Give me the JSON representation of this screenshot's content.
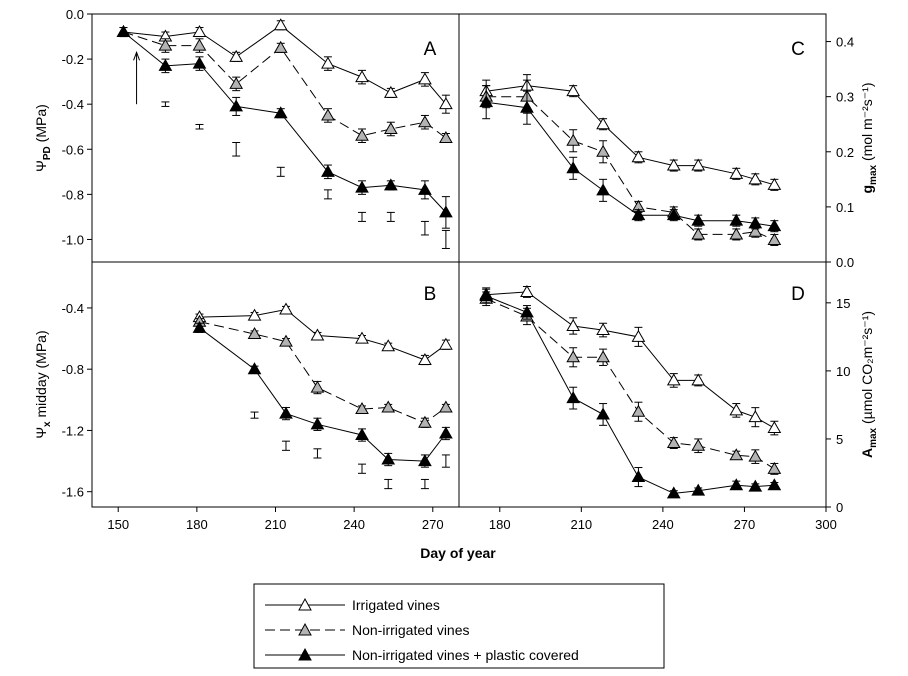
{
  "xlabel": "Day of year",
  "legend": {
    "placement": "bottom-center",
    "entries": [
      {
        "label": "Irrigated vines",
        "style": "solid",
        "marker": "open-triangle"
      },
      {
        "label": "Non-irrigated vines",
        "style": "dashed",
        "marker": "gray-triangle"
      },
      {
        "label": "Non-irrigated vines + plastic covered",
        "style": "solid",
        "marker": "black-triangle"
      }
    ]
  },
  "colors": {
    "irrigated": "#ffffff",
    "non_irrigated": "#b3b3b3",
    "covered": "#000000",
    "line": "#000000"
  },
  "chart_data": [
    {
      "panel": "A",
      "type": "line",
      "ylabel_main": "Ψ",
      "ylabel_sub": "PD",
      "ylabel_unit": " (MPa)",
      "xlim": [
        140,
        280
      ],
      "ylim": [
        -1.1,
        0.0
      ],
      "yticks": [
        0.0,
        -0.2,
        -0.4,
        -0.6,
        -0.8,
        -1.0
      ],
      "ytick_labels": [
        "0.0",
        "-0.2",
        "-0.4",
        "-0.6",
        "-0.8",
        "-1.0"
      ],
      "xticks": [
        150,
        180,
        210,
        240,
        270
      ],
      "series": [
        {
          "key": "irrigated",
          "x": [
            152,
            168,
            181,
            195,
            212,
            230,
            243,
            254,
            267,
            275
          ],
          "y": [
            -0.08,
            -0.1,
            -0.08,
            -0.19,
            -0.05,
            -0.22,
            -0.28,
            -0.35,
            -0.29,
            -0.4
          ],
          "err": [
            0.02,
            0.02,
            0.02,
            0.02,
            0.02,
            0.03,
            0.03,
            0.02,
            0.03,
            0.04
          ]
        },
        {
          "key": "non_irrigated",
          "x": [
            152,
            168,
            181,
            195,
            212,
            230,
            243,
            254,
            267,
            275
          ],
          "y": [
            -0.08,
            -0.14,
            -0.14,
            -0.31,
            -0.15,
            -0.45,
            -0.54,
            -0.51,
            -0.48,
            -0.55
          ],
          "err": [
            0.02,
            0.03,
            0.03,
            0.03,
            0.02,
            0.03,
            0.03,
            0.03,
            0.03,
            0.02
          ]
        },
        {
          "key": "covered",
          "x": [
            152,
            168,
            181,
            195,
            212,
            230,
            243,
            254,
            267,
            275
          ],
          "y": [
            -0.08,
            -0.23,
            -0.22,
            -0.41,
            -0.44,
            -0.7,
            -0.77,
            -0.76,
            -0.78,
            -0.88
          ],
          "err": [
            0.02,
            0.03,
            0.03,
            0.04,
            0.02,
            0.03,
            0.03,
            0.02,
            0.04,
            0.07
          ]
        }
      ],
      "error_only": {
        "x": [
          168,
          181,
          195,
          212,
          230,
          243,
          254,
          267,
          275
        ],
        "y": [
          -0.4,
          -0.5,
          -0.6,
          -0.7,
          -0.8,
          -0.9,
          -0.9,
          -0.95,
          -1.0
        ],
        "err": [
          0.01,
          0.01,
          0.03,
          0.02,
          0.02,
          0.02,
          0.02,
          0.03,
          0.04
        ]
      },
      "annotation_arrow": {
        "x": 157,
        "from_y": -0.4,
        "to_y": -0.17
      }
    },
    {
      "panel": "B",
      "type": "line",
      "ylabel_main": "Ψ",
      "ylabel_sub": "x",
      "ylabel_unit": " midday (MPa)",
      "xlim": [
        140,
        280
      ],
      "ylim": [
        -1.7,
        -0.1
      ],
      "yticks": [
        -0.4,
        -0.8,
        -1.2,
        -1.6
      ],
      "ytick_labels": [
        "-0.4",
        "-0.8",
        "-1.2",
        "-1.6"
      ],
      "xticks": [
        150,
        180,
        210,
        240,
        270
      ],
      "series": [
        {
          "key": "irrigated",
          "x": [
            181,
            202,
            214,
            226,
            243,
            253,
            267,
            275
          ],
          "y": [
            -0.46,
            -0.45,
            -0.41,
            -0.58,
            -0.6,
            -0.65,
            -0.74,
            -0.64
          ],
          "err": [
            0.02,
            0.02,
            0.02,
            0.02,
            0.02,
            0.02,
            0.03,
            0.03
          ]
        },
        {
          "key": "non_irrigated",
          "x": [
            181,
            202,
            214,
            226,
            243,
            253,
            267,
            275
          ],
          "y": [
            -0.49,
            -0.57,
            -0.62,
            -0.92,
            -1.06,
            -1.05,
            -1.15,
            -1.05
          ],
          "err": [
            0.02,
            0.02,
            0.02,
            0.04,
            0.02,
            0.02,
            0.03,
            0.02
          ]
        },
        {
          "key": "covered",
          "x": [
            181,
            202,
            214,
            226,
            243,
            253,
            267,
            275
          ],
          "y": [
            -0.53,
            -0.8,
            -1.09,
            -1.16,
            -1.23,
            -1.39,
            -1.4,
            -1.22
          ],
          "err": [
            0.03,
            0.02,
            0.04,
            0.04,
            0.04,
            0.04,
            0.04,
            0.04
          ]
        }
      ],
      "error_only": {
        "x": [
          202,
          214,
          226,
          243,
          253,
          267,
          275
        ],
        "y": [
          -1.1,
          -1.3,
          -1.35,
          -1.45,
          -1.55,
          -1.55,
          -1.4
        ],
        "err": [
          0.02,
          0.03,
          0.03,
          0.03,
          0.03,
          0.03,
          0.04
        ]
      }
    },
    {
      "panel": "C",
      "type": "line",
      "ylabel_main": "g",
      "ylabel_sub": "max",
      "ylabel_unit": " (mol m⁻²s⁻¹)",
      "xlim": [
        165,
        300
      ],
      "ylim": [
        0.0,
        0.45
      ],
      "yticks": [
        0.0,
        0.1,
        0.2,
        0.3,
        0.4
      ],
      "ytick_labels": [
        "0.0",
        "0.1",
        "0.2",
        "0.3",
        "0.4"
      ],
      "series": [
        {
          "key": "irrigated",
          "x": [
            175,
            190,
            207,
            218,
            231,
            244,
            253,
            267,
            274,
            281
          ],
          "y": [
            0.31,
            0.32,
            0.31,
            0.25,
            0.19,
            0.175,
            0.175,
            0.16,
            0.15,
            0.14
          ],
          "err": [
            0.02,
            0.02,
            0.01,
            0.01,
            0.01,
            0.01,
            0.01,
            0.01,
            0.01,
            0.01
          ]
        },
        {
          "key": "non_irrigated",
          "x": [
            175,
            190,
            207,
            218,
            231,
            244,
            253,
            267,
            274,
            281
          ],
          "y": [
            0.3,
            0.3,
            0.22,
            0.2,
            0.1,
            0.09,
            0.05,
            0.05,
            0.055,
            0.04
          ],
          "err": [
            0.02,
            0.03,
            0.02,
            0.02,
            0.01,
            0.01,
            0.01,
            0.01,
            0.01,
            0.01
          ]
        },
        {
          "key": "covered",
          "x": [
            175,
            190,
            207,
            218,
            231,
            244,
            253,
            267,
            274,
            281
          ],
          "y": [
            0.29,
            0.28,
            0.17,
            0.13,
            0.085,
            0.085,
            0.075,
            0.075,
            0.07,
            0.065
          ],
          "err": [
            0.03,
            0.03,
            0.02,
            0.02,
            0.01,
            0.01,
            0.01,
            0.01,
            0.01,
            0.01
          ]
        }
      ]
    },
    {
      "panel": "D",
      "type": "line",
      "ylabel_main": "A",
      "ylabel_sub": "max",
      "ylabel_unit": " (µmol CO₂m⁻²s⁻¹)",
      "xlim": [
        165,
        300
      ],
      "ylim": [
        0,
        18
      ],
      "yticks": [
        0,
        5,
        10,
        15
      ],
      "ytick_labels": [
        "0",
        "5",
        "10",
        "15"
      ],
      "xticks": [
        180,
        210,
        240,
        270,
        300
      ],
      "series": [
        {
          "key": "irrigated",
          "x": [
            175,
            190,
            207,
            218,
            231,
            244,
            253,
            267,
            274,
            281
          ],
          "y": [
            15.6,
            15.8,
            13.3,
            13.0,
            12.5,
            9.3,
            9.3,
            7.1,
            6.6,
            5.8
          ],
          "err": [
            0.5,
            0.4,
            0.6,
            0.5,
            0.7,
            0.5,
            0.4,
            0.5,
            0.7,
            0.5
          ]
        },
        {
          "key": "non_irrigated",
          "x": [
            175,
            190,
            207,
            218,
            231,
            244,
            253,
            267,
            274,
            281
          ],
          "y": [
            15.3,
            14.0,
            11.0,
            11.0,
            7.0,
            4.7,
            4.5,
            3.8,
            3.7,
            2.8
          ],
          "err": [
            0.5,
            0.6,
            0.7,
            0.6,
            0.7,
            0.4,
            0.5,
            0.3,
            0.5,
            0.4
          ]
        },
        {
          "key": "covered",
          "x": [
            175,
            190,
            207,
            218,
            231,
            244,
            253,
            267,
            274,
            281
          ],
          "y": [
            15.5,
            14.3,
            8.0,
            6.8,
            2.2,
            1.0,
            1.2,
            1.6,
            1.5,
            1.6
          ],
          "err": [
            0.5,
            0.5,
            0.8,
            0.8,
            0.7,
            0.2,
            0.2,
            0.3,
            0.2,
            0.2
          ]
        }
      ]
    }
  ]
}
